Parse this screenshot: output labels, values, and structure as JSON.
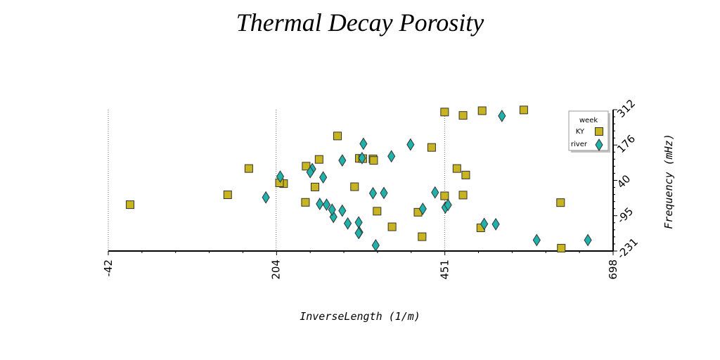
{
  "chart_data": {
    "type": "scatter",
    "title": "Thermal Decay Porosity",
    "xlabel": "InverseLength (1/m)",
    "ylabel": "Frequency (mHz)",
    "xlim": [
      -42,
      698
    ],
    "ylim": [
      -231,
      312
    ],
    "xticks": [
      "-42",
      "204",
      "451",
      "698"
    ],
    "yticks": [
      "-231",
      "-95",
      "40",
      "176",
      "312"
    ],
    "grid_x": true,
    "legend": {
      "title": "week",
      "placement": "top-right"
    },
    "series": [
      {
        "name": "KY",
        "marker": "square",
        "color": "#c8b41e",
        "points": [
          [
            -10,
            -53
          ],
          [
            133,
            -15
          ],
          [
            164,
            86
          ],
          [
            215,
            28
          ],
          [
            209,
            31
          ],
          [
            247,
            -44
          ],
          [
            248,
            95
          ],
          [
            261,
            15
          ],
          [
            267,
            121
          ],
          [
            294,
            211
          ],
          [
            319,
            16
          ],
          [
            326,
            125
          ],
          [
            331,
            124
          ],
          [
            346,
            123
          ],
          [
            347,
            117
          ],
          [
            352,
            -78
          ],
          [
            374,
            -138
          ],
          [
            412,
            -82
          ],
          [
            418,
            -176
          ],
          [
            432,
            167
          ],
          [
            451,
            -19
          ],
          [
            451,
            303
          ],
          [
            469,
            86
          ],
          [
            478,
            -16
          ],
          [
            478,
            290
          ],
          [
            482,
            61
          ],
          [
            504,
            -142
          ],
          [
            506,
            308
          ],
          [
            567,
            311
          ],
          [
            621,
            -45
          ],
          [
            622,
            -220
          ]
        ]
      },
      {
        "name": "river",
        "marker": "diamond",
        "color": "#20b2aa",
        "points": [
          [
            189,
            -25
          ],
          [
            210,
            55
          ],
          [
            257,
            84
          ],
          [
            254,
            72
          ],
          [
            273,
            52
          ],
          [
            268,
            -50
          ],
          [
            278,
            -53
          ],
          [
            288,
            -100
          ],
          [
            286,
            -72
          ],
          [
            301,
            -76
          ],
          [
            301,
            117
          ],
          [
            309,
            -125
          ],
          [
            325,
            -121
          ],
          [
            326,
            -159
          ],
          [
            325,
            -162
          ],
          [
            330,
            126
          ],
          [
            332,
            181
          ],
          [
            346,
            -9
          ],
          [
            350,
            -209
          ],
          [
            362,
            -8
          ],
          [
            373,
            133
          ],
          [
            401,
            178
          ],
          [
            419,
            -69
          ],
          [
            437,
            -6
          ],
          [
            452,
            -64
          ],
          [
            456,
            -54
          ],
          [
            509,
            -127
          ],
          [
            526,
            -128
          ],
          [
            535,
            288
          ],
          [
            586,
            -189
          ],
          [
            661,
            -189
          ]
        ]
      }
    ]
  }
}
